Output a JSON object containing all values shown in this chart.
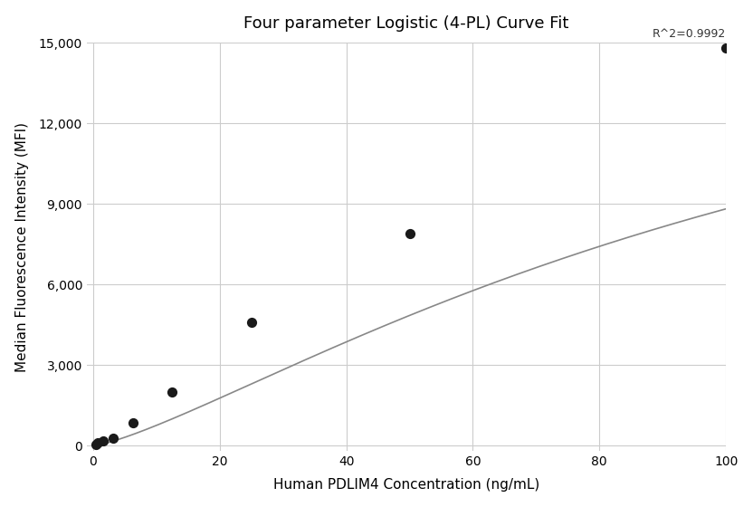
{
  "title": "Four parameter Logistic (4-PL) Curve Fit",
  "xlabel": "Human PDLIM4 Concentration (ng/mL)",
  "ylabel": "Median Fluorescence Intensity (MFI)",
  "r_squared": "R^2=0.9992",
  "scatter_x": [
    0.4,
    0.78,
    1.56,
    3.13,
    6.25,
    12.5,
    25,
    50,
    100
  ],
  "scatter_y": [
    50,
    100,
    170,
    300,
    850,
    2000,
    4600,
    7900,
    14800
  ],
  "xlim": [
    -1,
    100
  ],
  "ylim": [
    -200,
    15000
  ],
  "yticks": [
    0,
    3000,
    6000,
    9000,
    12000,
    15000
  ],
  "xticks": [
    0,
    20,
    40,
    60,
    80,
    100
  ],
  "scatter_color": "#1a1a1a",
  "line_color": "#888888",
  "background_color": "#ffffff",
  "grid_color": "#cccccc",
  "title_fontsize": 13,
  "label_fontsize": 11,
  "annotation_fontsize": 9,
  "tick_labelsize": 10
}
